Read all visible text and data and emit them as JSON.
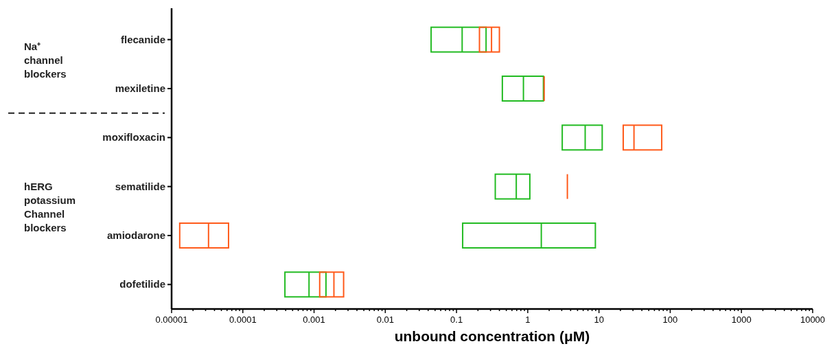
{
  "chart_data": {
    "type": "box",
    "orientation": "horizontal",
    "log": "x",
    "xlabel": "unbound concentration (μM)",
    "categories": [
      "flecanide",
      "mexiletine",
      "moxifloxacin",
      "sematilide",
      "amiodarone",
      "dofetilide"
    ],
    "series": [
      {
        "color": "#22bb22",
        "boxes": [
          {
            "low": 0.044,
            "q1": 0.044,
            "median": 0.12,
            "q3": 0.26,
            "high": 0.26
          },
          {
            "low": 0.44,
            "q1": 0.44,
            "median": 0.87,
            "q3": 1.66,
            "high": 1.66
          },
          {
            "low": 3.05,
            "q1": 3.05,
            "median": 6.4,
            "q3": 11.1,
            "high": 11.1
          },
          {
            "low": 0.35,
            "q1": 0.35,
            "median": 0.69,
            "q3": 1.07,
            "high": 1.07
          },
          {
            "low": 0.122,
            "q1": 0.122,
            "median": 1.55,
            "q3": 8.9,
            "high": 8.9
          },
          {
            "low": 0.00039,
            "q1": 0.00039,
            "median": 0.00085,
            "q3": 0.00147,
            "high": 0.00147
          }
        ]
      },
      {
        "color": "#ff5a1a",
        "boxes": [
          {
            "low": 0.21,
            "q1": 0.21,
            "median": 0.31,
            "q3": 0.4,
            "high": 0.4
          },
          {
            "low": 1.7,
            "q1": 1.7,
            "median": 1.7,
            "q3": 1.7,
            "high": 1.7
          },
          {
            "low": 21.9,
            "q1": 21.9,
            "median": 31,
            "q3": 76,
            "high": 76
          },
          {
            "low": 3.6,
            "q1": 3.6,
            "median": 3.6,
            "q3": 3.6,
            "high": 3.6
          },
          {
            "low": 1.3e-05,
            "q1": 1.3e-05,
            "median": 3.3e-05,
            "q3": 6.3e-05,
            "high": 6.3e-05
          },
          {
            "low": 0.0012,
            "q1": 0.0012,
            "median": 0.0019,
            "q3": 0.0026,
            "high": 0.0026
          }
        ]
      }
    ],
    "xlim": [
      1e-05,
      10000
    ],
    "xticks": [
      {
        "value": 1e-05,
        "label": "0.00001"
      },
      {
        "value": 0.0001,
        "label": "0.0001"
      },
      {
        "value": 0.001,
        "label": "0.001"
      },
      {
        "value": 0.01,
        "label": "0.01"
      },
      {
        "value": 0.1,
        "label": "0.1"
      },
      {
        "value": 1,
        "label": "1"
      },
      {
        "value": 10,
        "label": "10"
      },
      {
        "value": 100,
        "label": "100"
      },
      {
        "value": 1000,
        "label": "1000"
      },
      {
        "value": 10000,
        "label": "10000"
      },
      {
        "value": 2e-05,
        "label": null
      },
      {
        "value": 3e-05,
        "label": null
      },
      {
        "value": 4e-05,
        "label": null
      },
      {
        "value": 5e-05,
        "label": null
      },
      {
        "value": 6e-05,
        "label": null
      },
      {
        "value": 7e-05,
        "label": null
      },
      {
        "value": 8e-05,
        "label": null
      },
      {
        "value": 9e-05,
        "label": null
      },
      {
        "value": 0.0002,
        "label": null
      },
      {
        "value": 0.0003,
        "label": null
      },
      {
        "value": 0.0004,
        "label": null
      },
      {
        "value": 0.0005,
        "label": null
      },
      {
        "value": 0.0006,
        "label": null
      },
      {
        "value": 0.0007,
        "label": null
      },
      {
        "value": 0.0008,
        "label": null
      },
      {
        "value": 0.0009,
        "label": null
      },
      {
        "value": 0.002,
        "label": null
      },
      {
        "value": 0.003,
        "label": null
      },
      {
        "value": 0.004,
        "label": null
      },
      {
        "value": 0.005,
        "label": null
      },
      {
        "value": 0.006,
        "label": null
      },
      {
        "value": 0.007,
        "label": null
      },
      {
        "value": 0.008,
        "label": null
      },
      {
        "value": 0.009,
        "label": null
      },
      {
        "value": 0.02,
        "label": null
      },
      {
        "value": 0.03,
        "label": null
      },
      {
        "value": 0.04,
        "label": null
      },
      {
        "value": 0.05,
        "label": null
      },
      {
        "value": 0.06,
        "label": null
      },
      {
        "value": 0.07,
        "label": null
      },
      {
        "value": 0.08,
        "label": null
      },
      {
        "value": 0.09,
        "label": null
      },
      {
        "value": 0.2,
        "label": null
      },
      {
        "value": 0.3,
        "label": null
      },
      {
        "value": 0.4,
        "label": null
      },
      {
        "value": 0.5,
        "label": null
      },
      {
        "value": 0.6,
        "label": null
      },
      {
        "value": 0.7,
        "label": null
      },
      {
        "value": 0.8,
        "label": null
      },
      {
        "value": 0.9,
        "label": null
      },
      {
        "value": 2,
        "label": null
      },
      {
        "value": 3,
        "label": null
      },
      {
        "value": 4,
        "label": null
      },
      {
        "value": 5,
        "label": null
      },
      {
        "value": 6,
        "label": null
      },
      {
        "value": 7,
        "label": null
      },
      {
        "value": 8,
        "label": null
      },
      {
        "value": 9,
        "label": null
      },
      {
        "value": 20,
        "label": null
      },
      {
        "value": 30,
        "label": null
      },
      {
        "value": 40,
        "label": null
      },
      {
        "value": 50,
        "label": null
      },
      {
        "value": 60,
        "label": null
      },
      {
        "value": 70,
        "label": null
      },
      {
        "value": 80,
        "label": null
      },
      {
        "value": 90,
        "label": null
      },
      {
        "value": 200,
        "label": null
      },
      {
        "value": 300,
        "label": null
      },
      {
        "value": 400,
        "label": null
      },
      {
        "value": 500,
        "label": null
      },
      {
        "value": 600,
        "label": null
      },
      {
        "value": 700,
        "label": null
      },
      {
        "value": 800,
        "label": null
      },
      {
        "value": 900,
        "label": null
      },
      {
        "value": 2000,
        "label": null
      },
      {
        "value": 3000,
        "label": null
      },
      {
        "value": 4000,
        "label": null
      },
      {
        "value": 5000,
        "label": null
      },
      {
        "value": 6000,
        "label": null
      },
      {
        "value": 7000,
        "label": null
      },
      {
        "value": 8000,
        "label": null
      },
      {
        "value": 9000,
        "label": null
      }
    ],
    "annotations": [
      "Na⁺ channel blockers",
      "hERG potassium Channel blockers"
    ],
    "grid": false
  }
}
